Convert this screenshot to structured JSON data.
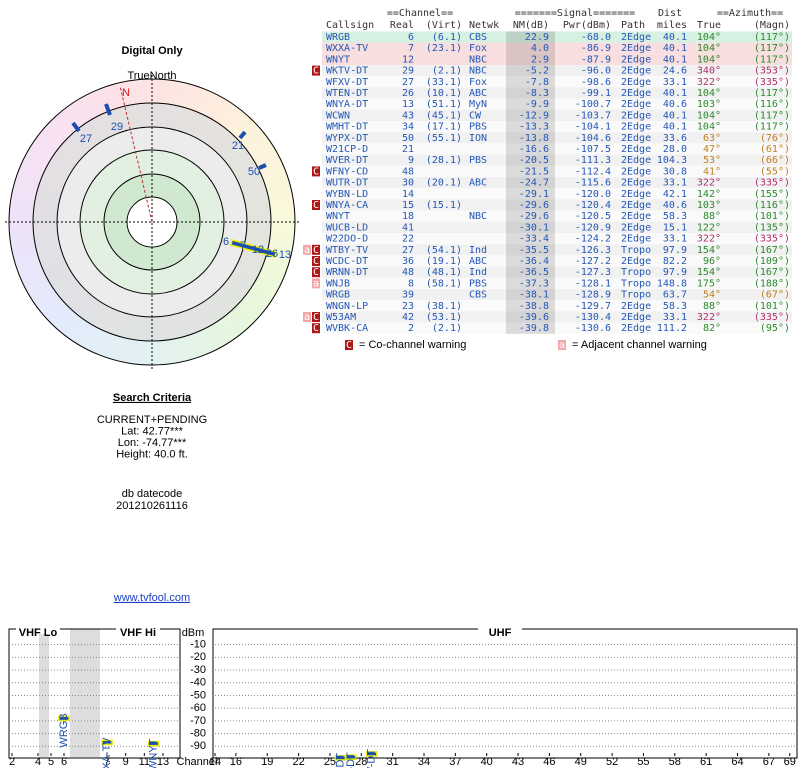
{
  "polar": {
    "title": "Digital Only",
    "north_label": "TrueNorth",
    "labels": [
      "N",
      "27",
      "29",
      "21",
      "50",
      "6",
      "7",
      "12",
      "26",
      "13"
    ]
  },
  "criteria": {
    "title": "Search Criteria",
    "lines": [
      "CURRENT+PENDING",
      "Lat: 42.77***",
      "Lon: -74.77***",
      "Height: 40.0 ft."
    ],
    "datecode_label": "db datecode",
    "datecode": "201210261116"
  },
  "link": "www.tvfool.com",
  "table": {
    "groups": [
      "==Channel==",
      "=======Signal=======",
      "Dist",
      "==Azimuth=="
    ],
    "columns": [
      "Callsign",
      "Real",
      "(Virt)",
      "Netwk",
      "NM(dB)",
      "Pwr(dBm)",
      "Path",
      "miles",
      "True",
      "(Magn)"
    ],
    "rows": [
      {
        "callsign": "WRGB",
        "real": "6",
        "virt": "(6.1)",
        "netwk": "CBS",
        "nm": "22.9",
        "pwr": "-68.0",
        "path": "2Edge",
        "dist": "40.1",
        "az_true": "104°",
        "az_magn": "(117°)",
        "az_color": "#2a8a2a",
        "bg": "#d6f0e2"
      },
      {
        "callsign": "WXXA-TV",
        "real": "7",
        "virt": "(23.1)",
        "netwk": "Fox",
        "nm": "4.0",
        "pwr": "-86.9",
        "path": "2Edge",
        "dist": "40.1",
        "az_true": "104°",
        "az_magn": "(117°)",
        "az_color": "#2a8a2a",
        "bg": "#f8dede"
      },
      {
        "callsign": "WNYT",
        "real": "12",
        "netwk": "NBC",
        "nm": "2.9",
        "pwr": "-87.9",
        "path": "2Edge",
        "dist": "40.1",
        "az_true": "104°",
        "az_magn": "(117°)",
        "az_color": "#2a8a2a",
        "bg": "#f8dede"
      },
      {
        "callsign": "WKTV-DT",
        "real": "29",
        "virt": "(2.1)",
        "netwk": "NBC",
        "nm": "-5.2",
        "pwr": "-96.0",
        "path": "2Edge",
        "dist": "24.6",
        "az_true": "340°",
        "az_magn": "(353°)",
        "az_color": "#b0306a",
        "warn": [
          "C"
        ]
      },
      {
        "callsign": "WFXV-DT",
        "real": "27",
        "virt": "(33.1)",
        "netwk": "Fox",
        "nm": "-7.8",
        "pwr": "-98.6",
        "path": "2Edge",
        "dist": "33.1",
        "az_true": "322°",
        "az_magn": "(335°)",
        "az_color": "#b0306a"
      },
      {
        "callsign": "WTEN-DT",
        "real": "26",
        "virt": "(10.1)",
        "netwk": "ABC",
        "nm": "-8.3",
        "pwr": "-99.1",
        "path": "2Edge",
        "dist": "40.1",
        "az_true": "104°",
        "az_magn": "(117°)",
        "az_color": "#2a8a2a"
      },
      {
        "callsign": "WNYA-DT",
        "real": "13",
        "virt": "(51.1)",
        "netwk": "MyN",
        "nm": "-9.9",
        "pwr": "-100.7",
        "path": "2Edge",
        "dist": "40.6",
        "az_true": "103°",
        "az_magn": "(116°)",
        "az_color": "#2a8a2a"
      },
      {
        "callsign": "WCWN",
        "real": "43",
        "virt": "(45.1)",
        "netwk": "CW",
        "nm": "-12.9",
        "pwr": "-103.7",
        "path": "2Edge",
        "dist": "40.1",
        "az_true": "104°",
        "az_magn": "(117°)",
        "az_color": "#2a8a2a"
      },
      {
        "callsign": "WMHT-DT",
        "real": "34",
        "virt": "(17.1)",
        "netwk": "PBS",
        "nm": "-13.3",
        "pwr": "-104.1",
        "path": "2Edge",
        "dist": "40.1",
        "az_true": "104°",
        "az_magn": "(117°)",
        "az_color": "#2a8a2a"
      },
      {
        "callsign": "WYPX-DT",
        "real": "50",
        "virt": "(55.1)",
        "netwk": "ION",
        "nm": "-13.8",
        "pwr": "-104.6",
        "path": "2Edge",
        "dist": "33.6",
        "az_true": "63°",
        "az_magn": "(76°)",
        "az_color": "#c08020"
      },
      {
        "callsign": "W21CP-D",
        "real": "21",
        "nm": "-16.6",
        "pwr": "-107.5",
        "path": "2Edge",
        "dist": "28.0",
        "az_true": "47°",
        "az_magn": "(61°)",
        "az_color": "#c08020"
      },
      {
        "callsign": "WVER-DT",
        "real": "9",
        "virt": "(28.1)",
        "netwk": "PBS",
        "nm": "-20.5",
        "pwr": "-111.3",
        "path": "2Edge",
        "dist": "104.3",
        "az_true": "53°",
        "az_magn": "(66°)",
        "az_color": "#c08020"
      },
      {
        "callsign": "WFNY-CD",
        "real": "48",
        "nm": "-21.5",
        "pwr": "-112.4",
        "path": "2Edge",
        "dist": "30.8",
        "az_true": "41°",
        "az_magn": "(55°)",
        "az_color": "#c08020",
        "warn": [
          "C"
        ]
      },
      {
        "callsign": "WUTR-DT",
        "real": "30",
        "virt": "(20.1)",
        "netwk": "ABC",
        "nm": "-24.7",
        "pwr": "-115.6",
        "path": "2Edge",
        "dist": "33.1",
        "az_true": "322°",
        "az_magn": "(335°)",
        "az_color": "#b0306a"
      },
      {
        "callsign": "WYBN-LD",
        "real": "14",
        "nm": "-29.1",
        "pwr": "-120.0",
        "path": "2Edge",
        "dist": "42.1",
        "az_true": "142°",
        "az_magn": "(155°)",
        "az_color": "#2a8a2a"
      },
      {
        "callsign": "WNYA-CA",
        "real": "15",
        "virt": "(15.1)",
        "nm": "-29.6",
        "pwr": "-120.4",
        "path": "2Edge",
        "dist": "40.6",
        "az_true": "103°",
        "az_magn": "(116°)",
        "az_color": "#2a8a2a",
        "warn": [
          "C"
        ]
      },
      {
        "callsign": "WNYT",
        "real": "18",
        "netwk": "NBC",
        "nm": "-29.6",
        "pwr": "-120.5",
        "path": "2Edge",
        "dist": "58.3",
        "az_true": "88°",
        "az_magn": "(101°)",
        "az_color": "#2a8a2a"
      },
      {
        "callsign": "WUCB-LD",
        "real": "41",
        "nm": "-30.1",
        "pwr": "-120.9",
        "path": "2Edge",
        "dist": "15.1",
        "az_true": "122°",
        "az_magn": "(135°)",
        "az_color": "#2a8a2a"
      },
      {
        "callsign": "W22DO-D",
        "real": "22",
        "nm": "-33.4",
        "pwr": "-124.2",
        "path": "2Edge",
        "dist": "33.1",
        "az_true": "322°",
        "az_magn": "(335°)",
        "az_color": "#b0306a"
      },
      {
        "callsign": "WTBY-TV",
        "real": "27",
        "virt": "(54.1)",
        "netwk": "Ind",
        "nm": "-35.5",
        "pwr": "-126.3",
        "path": "Tropo",
        "dist": "97.9",
        "az_true": "154°",
        "az_magn": "(167°)",
        "az_color": "#2a8a2a",
        "warn": [
          "a",
          "C"
        ]
      },
      {
        "callsign": "WCDC-DT",
        "real": "36",
        "virt": "(19.1)",
        "netwk": "ABC",
        "nm": "-36.4",
        "pwr": "-127.2",
        "path": "2Edge",
        "dist": "82.2",
        "az_true": "96°",
        "az_magn": "(109°)",
        "az_color": "#2a8a2a",
        "warn": [
          "C"
        ]
      },
      {
        "callsign": "WRNN-DT",
        "real": "48",
        "virt": "(48.1)",
        "netwk": "Ind",
        "nm": "-36.5",
        "pwr": "-127.3",
        "path": "Tropo",
        "dist": "97.9",
        "az_true": "154°",
        "az_magn": "(167°)",
        "az_color": "#2a8a2a",
        "warn": [
          "C"
        ]
      },
      {
        "callsign": "WNJB",
        "real": "8",
        "virt": "(58.1)",
        "netwk": "PBS",
        "nm": "-37.3",
        "pwr": "-128.1",
        "path": "Tropo",
        "dist": "148.8",
        "az_true": "175°",
        "az_magn": "(188°)",
        "az_color": "#2a8a2a",
        "warn": [
          "a"
        ]
      },
      {
        "callsign": "WRGB",
        "real": "39",
        "netwk": "CBS",
        "nm": "-38.1",
        "pwr": "-128.9",
        "path": "Tropo",
        "dist": "63.7",
        "az_true": "54°",
        "az_magn": "(67°)",
        "az_color": "#c08020"
      },
      {
        "callsign": "WNGN-LP",
        "real": "23",
        "virt": "(38.1)",
        "nm": "-38.8",
        "pwr": "-129.7",
        "path": "2Edge",
        "dist": "58.3",
        "az_true": "88°",
        "az_magn": "(101°)",
        "az_color": "#2a8a2a"
      },
      {
        "callsign": "W53AM",
        "real": "42",
        "virt": "(53.1)",
        "nm": "-39.6",
        "pwr": "-130.4",
        "path": "2Edge",
        "dist": "33.1",
        "az_true": "322°",
        "az_magn": "(335°)",
        "az_color": "#b0306a",
        "warn": [
          "a",
          "C"
        ]
      },
      {
        "callsign": "WVBK-CA",
        "real": "2",
        "virt": "(2.1)",
        "nm": "-39.8",
        "pwr": "-130.6",
        "path": "2Edge",
        "dist": "111.2",
        "az_true": "82°",
        "az_magn": "(95°)",
        "az_color": "#2a8a2a",
        "warn": [
          "C"
        ]
      }
    ]
  },
  "legend": {
    "co_symbol": "C",
    "co_text": "= Co-channel warning",
    "adj_symbol": "a",
    "adj_text": "= Adjacent channel warning"
  },
  "spectrum": {
    "vhf_lo_label": "VHF Lo",
    "vhf_hi_label": "VHF Hi",
    "uhf_label": "UHF",
    "y_label": "dBm",
    "x_label": "Channel",
    "ylim": [
      -4,
      -100
    ],
    "yticks": [
      -10,
      -20,
      -30,
      -40,
      -50,
      -60,
      -70,
      -80,
      -90
    ],
    "vhf_lo_channels": [
      2,
      4,
      5,
      6
    ],
    "vhf_hi_channels": [
      7,
      9,
      11,
      13
    ],
    "uhf_channels": [
      14,
      16,
      19,
      22,
      25,
      28,
      31,
      34,
      37,
      40,
      43,
      46,
      49,
      52,
      55,
      58,
      61,
      64,
      67,
      69
    ],
    "stations": [
      "WRGB",
      "WXXA-TV",
      "WNYT",
      "WTEN-DT",
      "WFXV-DT",
      "WKTV-DT"
    ],
    "marker_color": "#1a4fb0"
  }
}
